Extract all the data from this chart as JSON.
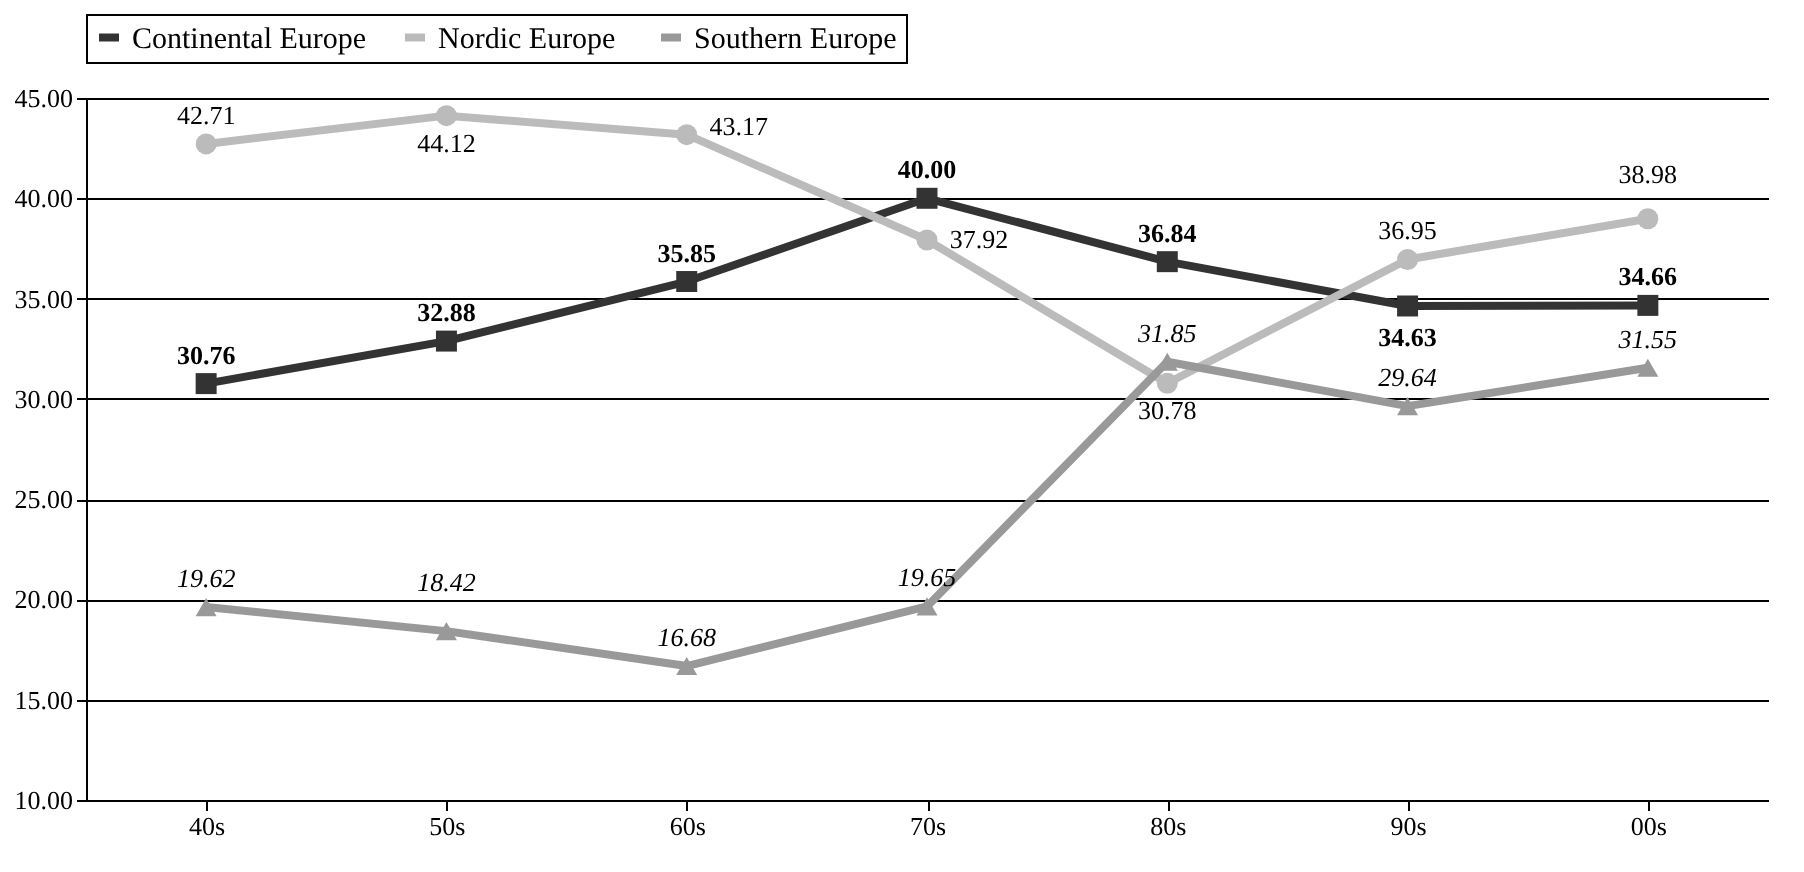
{
  "chart_data": {
    "type": "line",
    "categories": [
      "40s",
      "50s",
      "60s",
      "70s",
      "80s",
      "90s",
      "00s"
    ],
    "series": [
      {
        "name": "Continental Europe",
        "color": "#333333",
        "marker": "square",
        "values": [
          30.76,
          32.88,
          35.85,
          40.0,
          36.84,
          34.63,
          34.66
        ],
        "value_labels": [
          "30.76",
          "32.88",
          "35.85",
          "40.00",
          "36.84",
          "34.63",
          "34.66"
        ]
      },
      {
        "name": "Nordic  Europe",
        "color": "#bbbbbb",
        "marker": "circle",
        "values": [
          42.71,
          44.12,
          43.17,
          37.92,
          30.78,
          36.95,
          38.98
        ],
        "value_labels": [
          "42.71",
          "44.12",
          "43.17",
          "37.92",
          "30.78",
          "36.95",
          "38.98"
        ]
      },
      {
        "name": "Southern Europe",
        "color": "#999999",
        "marker": "triangle",
        "values": [
          19.62,
          18.42,
          16.68,
          19.65,
          31.85,
          29.64,
          31.55
        ],
        "value_labels": [
          "19.62",
          "18.42",
          "16.68",
          "19.65",
          "31.85",
          "29.64",
          "31.55"
        ]
      }
    ],
    "ylim": [
      10,
      45
    ],
    "yticks": [
      {
        "value": 10,
        "label": "10.00"
      },
      {
        "value": 15,
        "label": "15.00"
      },
      {
        "value": 20,
        "label": "20.00"
      },
      {
        "value": 25,
        "label": "25.00"
      },
      {
        "value": 30,
        "label": "30.00"
      },
      {
        "value": 35,
        "label": "35.00"
      },
      {
        "value": 40,
        "label": "40.00"
      },
      {
        "value": 45,
        "label": "45.00"
      }
    ],
    "grid": "y",
    "legend": "top",
    "line_style": "solid"
  }
}
